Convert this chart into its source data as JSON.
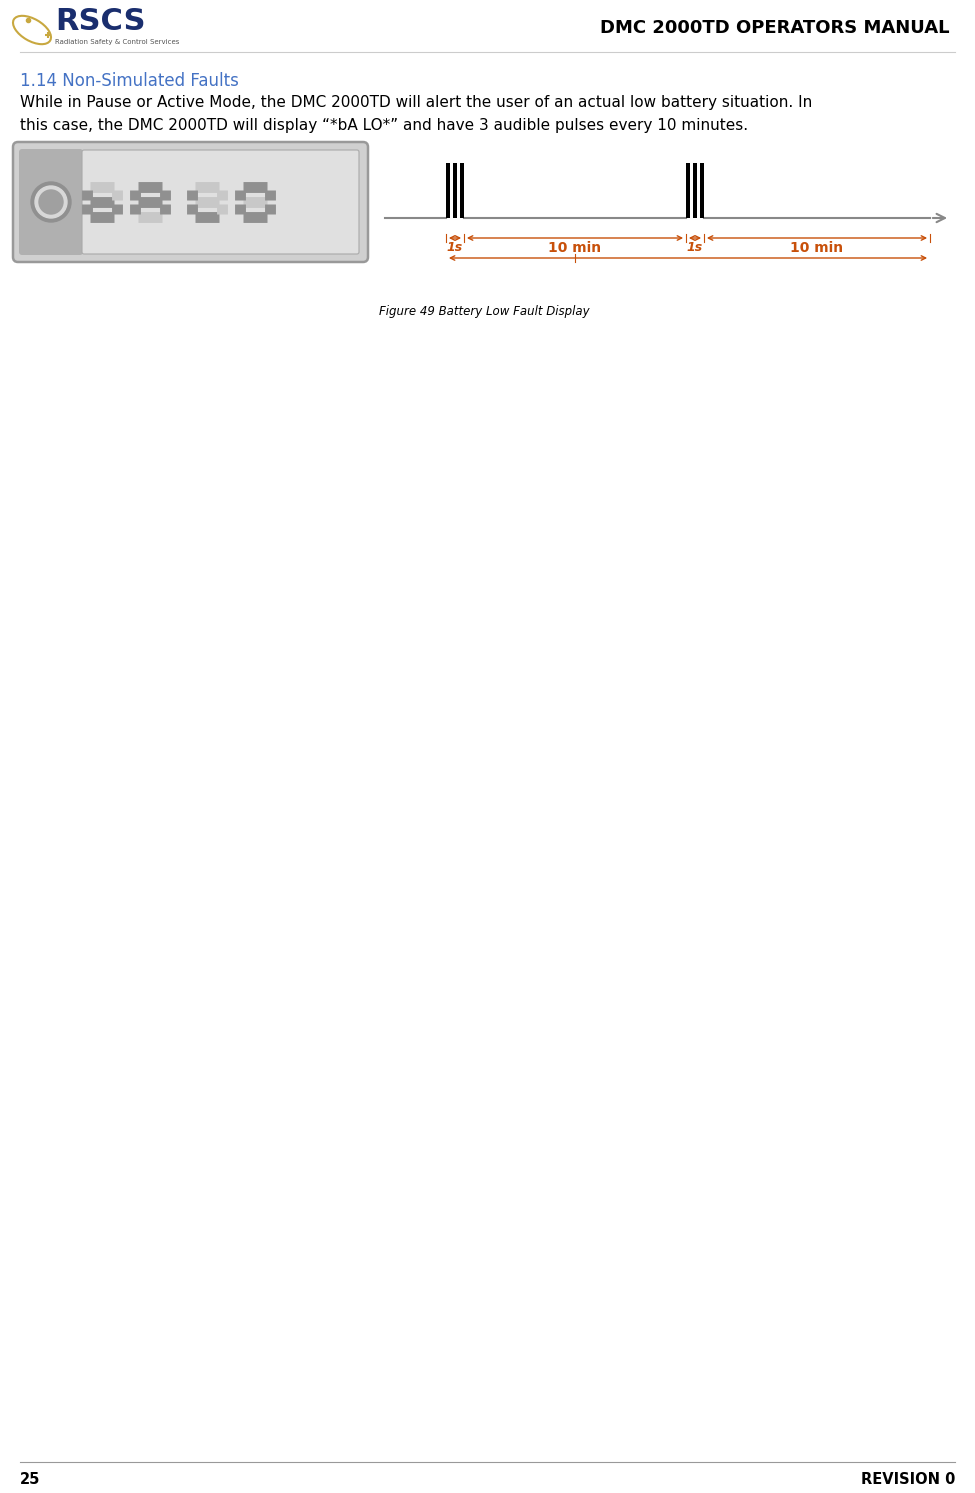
{
  "title": "DMC 2000TD OPERATORS MANUAL",
  "section": "1.14 Non-Simulated Faults",
  "section_color": "#4472C4",
  "body_text_line1": "While in Pause or Active Mode, the DMC 2000TD will alert the user of an actual low battery situation. In",
  "body_text_line2": "this case, the DMC 2000TD will display “*bA LO*” and have 3 audible pulses every 10 minutes.",
  "figure_caption": "Figure 49 Battery Low Fault Display",
  "page_number": "25",
  "revision": "REVISION 0",
  "bg_color": "#ffffff",
  "text_color": "#000000",
  "title_font_size": 13,
  "section_font_size": 12,
  "body_font_size": 11,
  "caption_font_size": 8.5,
  "footer_font_size": 10.5,
  "logo_rscs_color": "#1a2e6e",
  "logo_star_color": "#c8a840",
  "logo_sub_color": "#555555",
  "dim_label_color": "#c8500a",
  "timeline_color": "#888888",
  "pulse_color": "#000000"
}
